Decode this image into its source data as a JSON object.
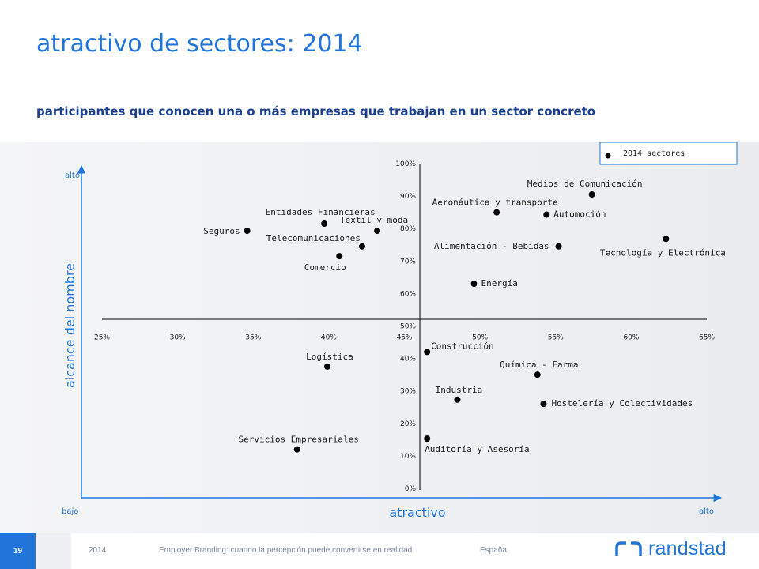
{
  "title": "atractivo de sectores: 2014",
  "subtitle": "participantes que conocen una o más empresas que trabajan en un sector concreto",
  "colors": {
    "title": "#2175d9",
    "subtitle": "#1b3f8f",
    "axis_label": "#2175d9",
    "point": "#000000",
    "accent": "#2175d9"
  },
  "chart_data": {
    "type": "scatter",
    "xlabel": "atractivo",
    "ylabel": "alcance del nombre",
    "x_low_label": "bajo",
    "x_high_label": "alto",
    "y_high_label": "alto",
    "legend": "2014 sectores",
    "legend_position": "top-right",
    "xlim": [
      25,
      65
    ],
    "ylim": [
      0,
      100
    ],
    "x_ticks": [
      "25%",
      "30%",
      "35%",
      "40%",
      "45%",
      "50%",
      "55%",
      "60%",
      "65%"
    ],
    "y_ticks": [
      "0%",
      "10%",
      "20%",
      "30%",
      "40%",
      "50%",
      "60%",
      "70%",
      "80%",
      "90%",
      "100%"
    ],
    "grid": false,
    "points": [
      {
        "label": "Seguros",
        "x": 34.6,
        "y": 79.3
      },
      {
        "label": "Entidades Financieras",
        "x": 39.7,
        "y": 81.5
      },
      {
        "label": "Textil y moda",
        "x": 43.2,
        "y": 79.3
      },
      {
        "label": "Telecomunicaciones",
        "x": 42.2,
        "y": 74.5
      },
      {
        "label": "Comercio",
        "x": 40.7,
        "y": 71.5
      },
      {
        "label": "Aeronáutica y transporte",
        "x": 51.1,
        "y": 85.0
      },
      {
        "label": "Medios de Comunicación",
        "x": 57.4,
        "y": 90.5
      },
      {
        "label": "Automoción",
        "x": 54.4,
        "y": 84.3
      },
      {
        "label": "Alimentación - Bebidas",
        "x": 55.2,
        "y": 74.5
      },
      {
        "label": "Tecnología y Electrónica",
        "x": 62.3,
        "y": 76.8
      },
      {
        "label": "Energía",
        "x": 49.6,
        "y": 63.0
      },
      {
        "label": "Construcción",
        "x": 46.5,
        "y": 42.0
      },
      {
        "label": "Logística",
        "x": 39.9,
        "y": 37.5
      },
      {
        "label": "Química - Farma",
        "x": 53.8,
        "y": 35.0
      },
      {
        "label": "Industria",
        "x": 48.5,
        "y": 27.3
      },
      {
        "label": "Hostelería y Colectividades",
        "x": 54.2,
        "y": 26.0
      },
      {
        "label": "Auditoría y Asesoría",
        "x": 46.5,
        "y": 15.3
      },
      {
        "label": "Servicios Empresariales",
        "x": 37.9,
        "y": 12.0
      }
    ]
  },
  "footer": {
    "page": "19",
    "year": "2014",
    "description": "Employer Branding: cuando la percepción puede convertirse en realidad",
    "country": "España",
    "brand": "randstad"
  }
}
